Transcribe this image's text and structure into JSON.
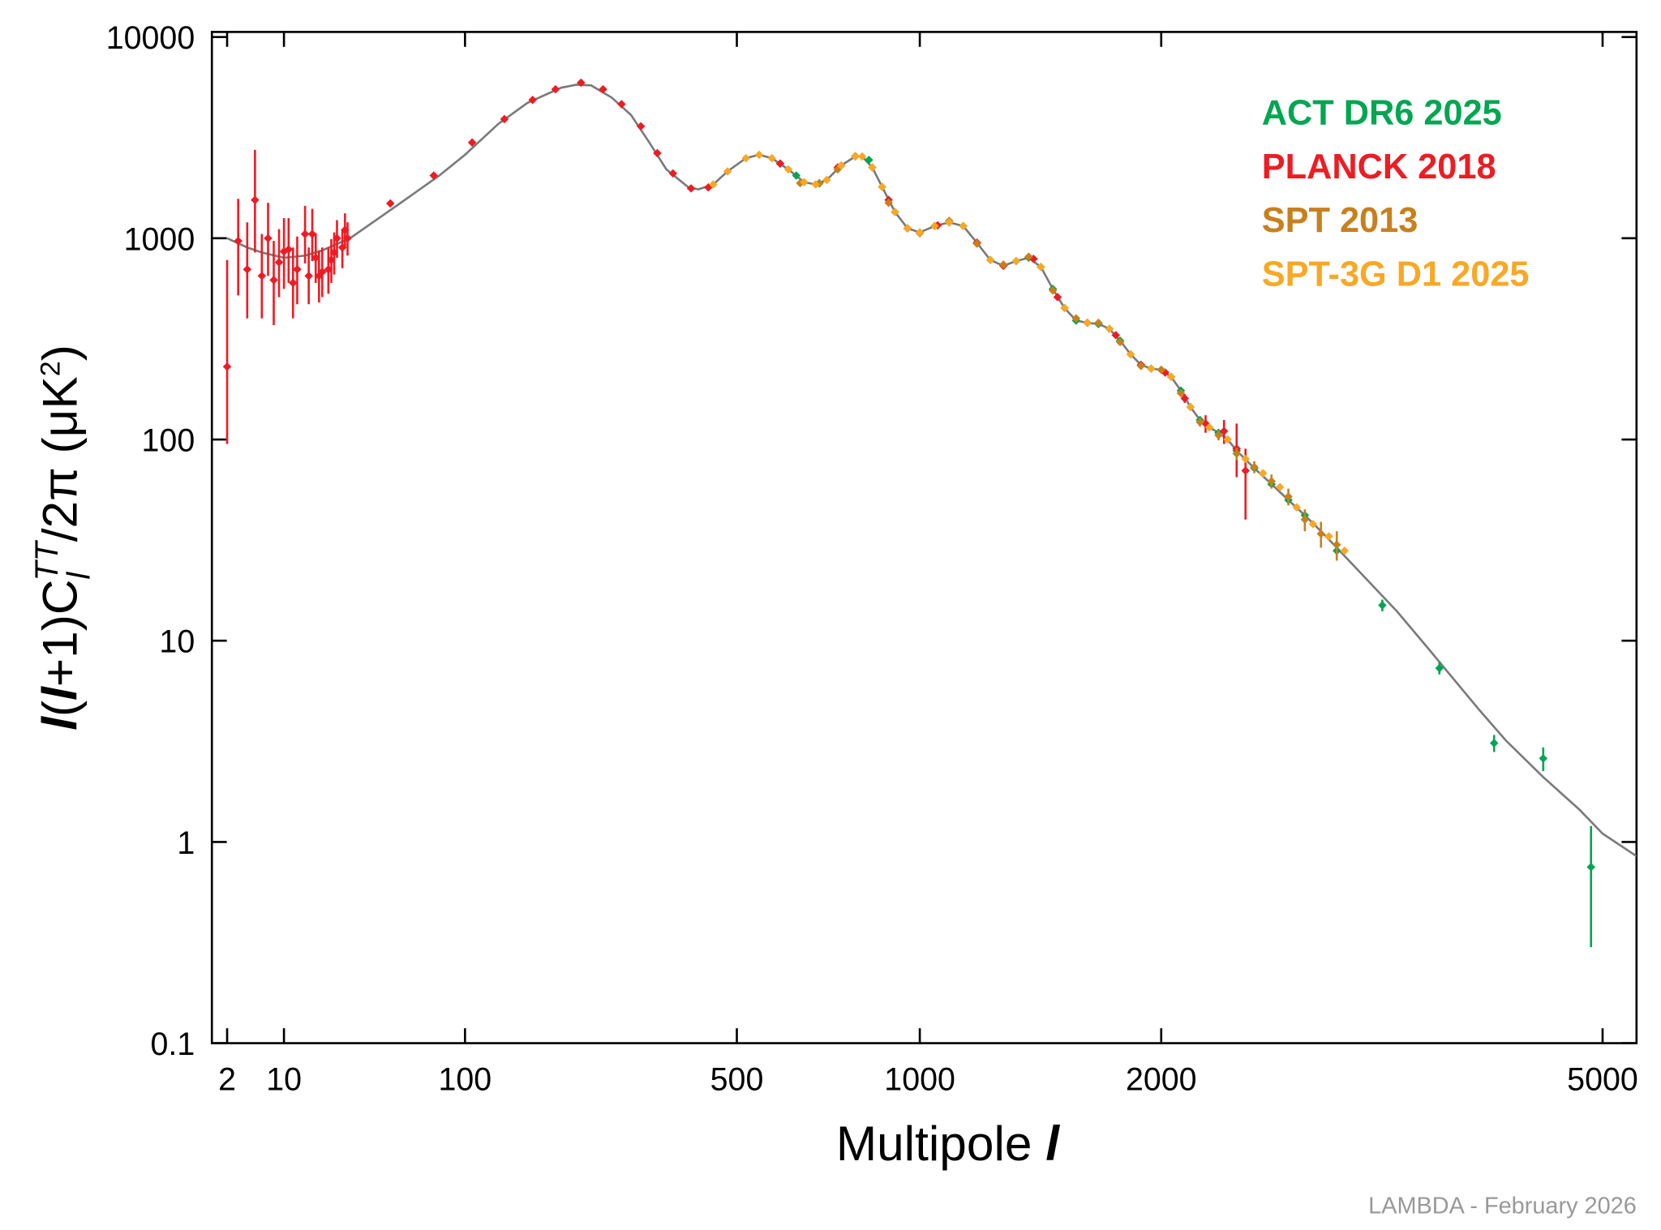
{
  "chart_data": {
    "type": "scatter",
    "x_label": [
      "Multipole ",
      "l"
    ],
    "y_label": [
      "l",
      "(",
      "l",
      "+1)C",
      "l",
      "TT",
      "/2π (μK",
      "2",
      ")"
    ],
    "credit": "LAMBDA - February 2026",
    "xscale": "power",
    "yscale": "log",
    "xlim": [
      1,
      5300
    ],
    "ylim": [
      0.1,
      10600
    ],
    "xticks": [
      2,
      10,
      100,
      500,
      1000,
      2000,
      5000
    ],
    "yticks": [
      0.1,
      1,
      10,
      100,
      1000,
      10000
    ],
    "legend": "upper right",
    "model": {
      "color": "#7a7a7a",
      "x": [
        2,
        4,
        6,
        10,
        15,
        20,
        30,
        50,
        80,
        100,
        130,
        160,
        200,
        220,
        240,
        270,
        300,
        330,
        360,
        400,
        420,
        450,
        480,
        520,
        550,
        580,
        620,
        660,
        690,
        720,
        760,
        800,
        820,
        850,
        880,
        920,
        960,
        1000,
        1050,
        1100,
        1150,
        1200,
        1250,
        1300,
        1350,
        1400,
        1450,
        1500,
        1550,
        1600,
        1650,
        1700,
        1750,
        1800,
        1850,
        1900,
        1950,
        2000,
        2050,
        2100,
        2150,
        2200,
        2250,
        2300,
        2350,
        2400,
        2500,
        2600,
        2700,
        2800,
        2900,
        3000,
        3200,
        3400,
        3600,
        3800,
        4000,
        4200,
        4500,
        4800,
        5000,
        5300
      ],
      "values": [
        1000,
        900,
        850,
        800,
        820,
        870,
        1000,
        1400,
        2050,
        2600,
        3700,
        4700,
        5600,
        5800,
        5750,
        5000,
        4100,
        3000,
        2200,
        1800,
        1750,
        1850,
        2150,
        2500,
        2600,
        2500,
        2200,
        1900,
        1850,
        1950,
        2300,
        2550,
        2550,
        2250,
        1800,
        1350,
        1120,
        1070,
        1150,
        1200,
        1150,
        950,
        780,
        730,
        770,
        800,
        720,
        560,
        450,
        390,
        380,
        375,
        355,
        310,
        265,
        235,
        225,
        222,
        205,
        175,
        145,
        125,
        115,
        108,
        100,
        88,
        72,
        60,
        50,
        42,
        35,
        29,
        20,
        14,
        9.5,
        6.5,
        4.5,
        3.2,
        2.1,
        1.45,
        1.1,
        0.85
      ]
    },
    "series": [
      {
        "name": "ACT DR6 2025",
        "color": "#00a651",
        "x": [
          600,
          640,
          700,
          760,
          800,
          840,
          880,
          920,
          960,
          1000,
          1050,
          1100,
          1150,
          1200,
          1250,
          1300,
          1350,
          1400,
          1450,
          1500,
          1550,
          1600,
          1650,
          1700,
          1750,
          1800,
          1850,
          1900,
          1950,
          2000,
          2050,
          2100,
          2150,
          2200,
          2300,
          2400,
          2500,
          2600,
          2700,
          2800,
          3000,
          3300,
          3700,
          4110,
          4500,
          4900
        ],
        "values": [
          2350,
          2050,
          1880,
          2300,
          2550,
          2450,
          1800,
          1350,
          1120,
          1070,
          1150,
          1200,
          1150,
          950,
          780,
          730,
          770,
          800,
          720,
          560,
          450,
          390,
          380,
          375,
          355,
          310,
          265,
          235,
          225,
          222,
          205,
          175,
          145,
          125,
          108,
          88,
          72,
          60,
          50,
          42,
          28,
          15,
          7.3,
          3.1,
          2.6,
          0.75
        ],
        "errors": [
          30,
          30,
          25,
          25,
          30,
          30,
          25,
          20,
          15,
          15,
          15,
          15,
          15,
          12,
          10,
          10,
          10,
          10,
          9,
          7,
          6,
          5,
          5,
          5,
          5,
          4,
          4,
          3,
          3,
          3,
          3,
          3,
          2,
          2,
          2,
          2,
          2,
          2,
          2,
          2,
          1.5,
          1,
          0.5,
          0.3,
          0.35,
          0.45
        ]
      },
      {
        "name": "PLANCK 2018",
        "color": "#ed1c24",
        "x": [
          2,
          3,
          4,
          5,
          6,
          7,
          8,
          9,
          10,
          11,
          12,
          13,
          15,
          16,
          17,
          18,
          19,
          20,
          22,
          23,
          24,
          25,
          27,
          28,
          29,
          49,
          76,
          106,
          136,
          166,
          193,
          226,
          257,
          285,
          316,
          344,
          372,
          406,
          440,
          600,
          750,
          900,
          960,
          1060,
          1200,
          1300,
          1420,
          1520,
          1650,
          1780,
          1900,
          2020,
          2120,
          2230,
          2330,
          2400,
          2450
        ],
        "values": [
          230,
          970,
          700,
          1550,
          650,
          1000,
          620,
          760,
          860,
          880,
          600,
          700,
          1050,
          650,
          1050,
          800,
          650,
          680,
          700,
          780,
          850,
          1000,
          900,
          1100,
          1000,
          1490,
          2050,
          2990,
          3910,
          4870,
          5500,
          5930,
          5500,
          4640,
          3600,
          2650,
          2100,
          1770,
          1790,
          2350,
          2250,
          1550,
          1120,
          1160,
          950,
          730,
          790,
          510,
          380,
          330,
          235,
          215,
          160,
          120,
          110,
          90,
          70
        ],
        "errors_low": [
          135,
          450,
          300,
          700,
          250,
          350,
          250,
          250,
          300,
          280,
          200,
          230,
          300,
          180,
          280,
          200,
          170,
          170,
          170,
          180,
          190,
          200,
          190,
          200,
          180,
          60,
          60,
          50,
          50,
          50,
          50,
          50,
          50,
          40,
          40,
          35,
          30,
          30,
          30,
          30,
          30,
          25,
          20,
          20,
          15,
          12,
          12,
          10,
          8,
          7,
          6,
          6,
          8,
          12,
          15,
          25,
          30
        ],
        "errors_high": [
          550,
          600,
          500,
          1200,
          400,
          500,
          350,
          350,
          400,
          380,
          300,
          320,
          400,
          250,
          350,
          260,
          220,
          220,
          200,
          210,
          220,
          230,
          210,
          230,
          200,
          60,
          60,
          50,
          50,
          50,
          50,
          50,
          50,
          40,
          40,
          35,
          30,
          30,
          30,
          30,
          30,
          25,
          20,
          20,
          15,
          12,
          12,
          10,
          8,
          7,
          6,
          6,
          8,
          12,
          15,
          30,
          20
        ]
      },
      {
        "name": "SPT 2013",
        "color": "#c8801e",
        "x": [
          650,
          700,
          750,
          800,
          850,
          900,
          1000,
          1100,
          1200,
          1300,
          1400,
          1500,
          1600,
          1700,
          1800,
          1900,
          2000,
          2100,
          2200,
          2300,
          2400,
          2500,
          2600,
          2700,
          2800,
          2900,
          3000
        ],
        "values": [
          1880,
          1870,
          2200,
          2560,
          2250,
          1500,
          1060,
          1220,
          940,
          740,
          810,
          550,
          400,
          380,
          305,
          232,
          222,
          170,
          122,
          105,
          85,
          73,
          62,
          52,
          40,
          34,
          30
        ],
        "errors": [
          60,
          60,
          60,
          60,
          60,
          50,
          40,
          40,
          30,
          25,
          25,
          20,
          15,
          12,
          10,
          8,
          8,
          7,
          6,
          6,
          6,
          5,
          5,
          5,
          5,
          5,
          5
        ]
      },
      {
        "name": "SPT-3G D1 2025",
        "color": "#f9a825",
        "x": [
          450,
          480,
          520,
          550,
          580,
          620,
          660,
          690,
          720,
          760,
          800,
          820,
          850,
          880,
          920,
          960,
          1000,
          1050,
          1100,
          1150,
          1250,
          1350,
          1450,
          1550,
          1650,
          1750,
          1850,
          1950,
          2050,
          2150,
          2250,
          2350,
          2450,
          2550,
          2650,
          2750,
          2850,
          2950,
          3050
        ],
        "values": [
          1850,
          2150,
          2500,
          2600,
          2500,
          2200,
          1900,
          1850,
          1950,
          2300,
          2550,
          2550,
          2250,
          1800,
          1350,
          1120,
          1070,
          1150,
          1200,
          1150,
          780,
          770,
          720,
          450,
          380,
          355,
          265,
          225,
          205,
          145,
          115,
          100,
          80,
          68,
          58,
          46,
          38,
          33,
          28
        ]
      }
    ]
  }
}
